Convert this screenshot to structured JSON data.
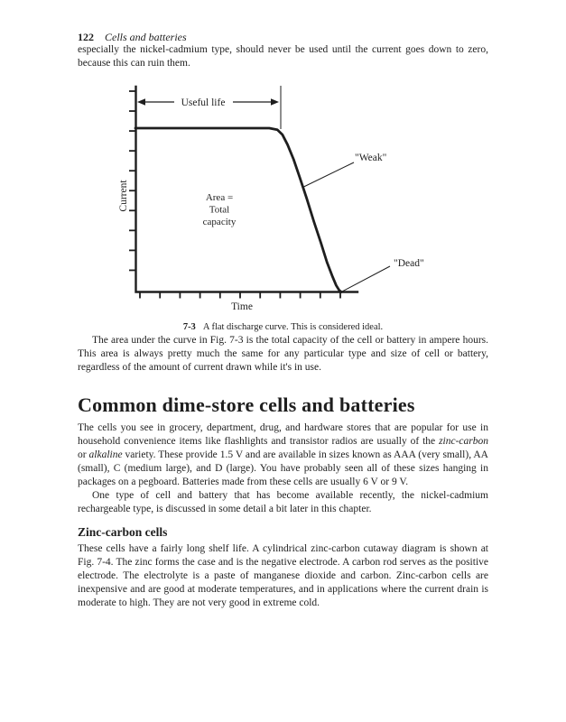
{
  "colors": {
    "ink": "#1e1e1e",
    "paper": "#ffffff"
  },
  "page_header": {
    "page_number": "122",
    "chapter_title": "Cells and batteries"
  },
  "headings": {
    "section": "Common dime-store cells and batteries",
    "subsection": "Zinc-carbon cells"
  },
  "paragraphs": {
    "p1": "especially the nickel-cadmium type, should never be used until the current goes down to zero, because this can ruin them.",
    "p2": "The area under the curve in Fig. 7-3 is the total capacity of the cell or battery in ampere hours. This area is always pretty much the same for any particular type and size of cell or battery, regardless of the amount of current drawn while it's in use.",
    "p3_rich": [
      {
        "t": "The cells you see in grocery, department, drug, and hardware stores that are popular for use in household convenience items like flashlights and transistor radios are usually of the "
      },
      {
        "t": "zinc-carbon",
        "i": true
      },
      {
        "t": " or "
      },
      {
        "t": "alkaline",
        "i": true
      },
      {
        "t": " variety. These provide 1.5 V and are available in sizes known as AAA (very small), AA (small), C (medium large), and D (large). You have probably seen all of these sizes hanging in packages on a pegboard. Batteries made from these cells are usually 6 V or 9 V."
      }
    ],
    "p4": "One type of cell and battery that has become available recently, the nickel-cadmium rechargeable type, is discussed in some detail a bit later in this chapter.",
    "p5": "These cells have a fairly long shelf life. A cylindrical zinc-carbon cutaway diagram is shown at Fig. 7-4. The zinc forms the case and is the negative electrode. A carbon rod serves as the positive electrode. The electrolyte is a paste of manganese dioxide and carbon. Zinc-carbon cells are inexpensive and are good at moderate temperatures, and in applications where the current drain is moderate to high. They are not very good in extreme cold."
  },
  "figure": {
    "number": "7-3",
    "caption": "A flat discharge curve. This is considered ideal.",
    "labels": {
      "ylabel": "Current",
      "xlabel": "Time",
      "useful_life": "Useful life",
      "area_line1": "Area =",
      "area_line2": "Total",
      "area_line3": "capacity",
      "weak": "\"Weak\"",
      "dead": "\"Dead\""
    }
  },
  "chart_data": {
    "type": "line",
    "figure_number": "7-3",
    "title": "A flat discharge curve. This is considered ideal.",
    "xlabel": "Time",
    "ylabel": "Current",
    "grid": false,
    "legend": false,
    "x_axis": {
      "tick_count": 11,
      "tick_labels_shown": false,
      "units": "relative time"
    },
    "y_axis": {
      "tick_count": 10,
      "tick_labels_shown": false,
      "range": [
        0,
        1
      ],
      "units": "fraction of full-load current"
    },
    "series": [
      {
        "name": "discharge-curve",
        "x": [
          0,
          1,
          2,
          3,
          4,
          5,
          6,
          6.6,
          7.0,
          7.25,
          7.5,
          7.8,
          8.1,
          8.45,
          8.8,
          9.15,
          9.45,
          9.7,
          9.9,
          10.05,
          10.15
        ],
        "y": [
          1,
          1,
          1,
          1,
          1,
          1,
          1,
          1,
          0.99,
          0.96,
          0.9,
          0.81,
          0.7,
          0.57,
          0.43,
          0.3,
          0.18,
          0.1,
          0.04,
          0.01,
          0
        ]
      }
    ],
    "annotations": [
      {
        "label": "Useful life",
        "type": "double-arrow-span",
        "from_x": 0,
        "to_x": 7.0
      },
      {
        "label": "Area = Total capacity",
        "type": "region-note",
        "at": {
          "x": 4.2,
          "y": 0.5
        }
      },
      {
        "label": "\"Weak\"",
        "type": "callout",
        "points_to": {
          "x": 8.3,
          "y": 0.64
        }
      },
      {
        "label": "\"Dead\"",
        "type": "callout",
        "points_to": {
          "x": 10.15,
          "y": 0
        }
      }
    ]
  }
}
